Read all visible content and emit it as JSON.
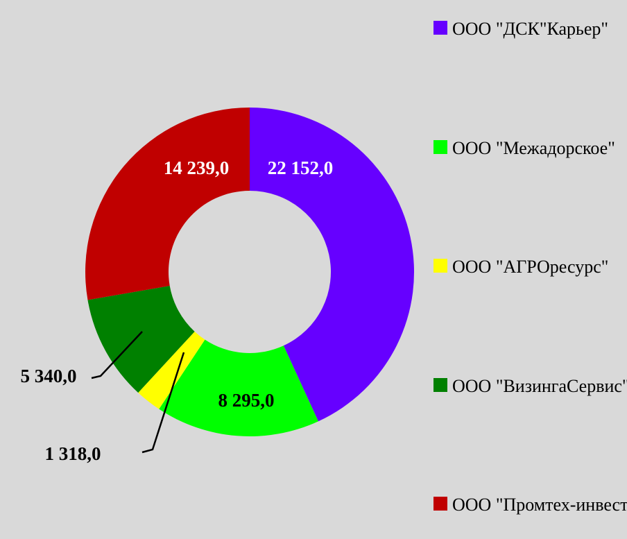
{
  "chart_data": {
    "type": "donut",
    "series": [
      {
        "name": "ООО \"ДСК\"Карьер\"",
        "color": "#6600ff"
      },
      {
        "name": "ООО \"Межадорское\"",
        "color": "#00ff00"
      },
      {
        "name": "ООО \"АГРОресурс\"",
        "color": "#ffff00"
      },
      {
        "name": "ООО \"ВизингаСервис\"",
        "color": "#008000"
      },
      {
        "name": "ООО \"Промтех-инвест\"",
        "color": "#c00000"
      }
    ],
    "values": [
      22152,
      8295,
      1318,
      5340,
      14239
    ],
    "value_labels": [
      "22 152,0",
      "8 295,0",
      "1 318,0",
      "5 340,0",
      "14 239,0"
    ],
    "legend": "right"
  }
}
